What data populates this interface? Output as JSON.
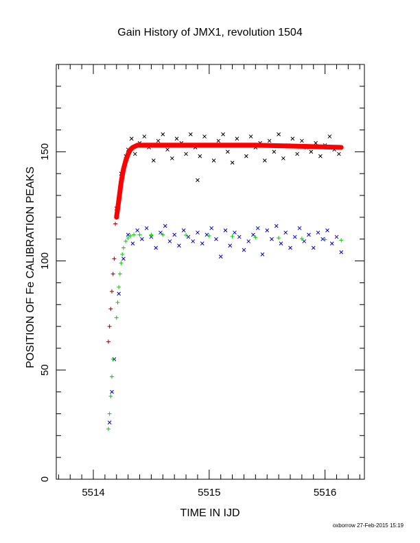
{
  "chart_data": {
    "type": "scatter",
    "title": "Gain History of JMX1, revolution 1504",
    "xlabel": "TIME IN IJD",
    "ylabel": "POSITION OF Fe CALIBRATION PEAKS",
    "footer": "oxborrow 27-Feb-2015 15:19",
    "xlim": [
      5513.68,
      5516.34
    ],
    "ylim": [
      0,
      190
    ],
    "x_ticks": [
      5514,
      5515,
      5516
    ],
    "x_tick_labels": [
      "5514",
      "5515",
      "5516"
    ],
    "y_ticks": [
      0,
      50,
      100,
      150
    ],
    "y_tick_labels": [
      "0",
      "50",
      "100",
      "150"
    ],
    "grid": false,
    "series": [
      {
        "marker": "x",
        "color": "#000000",
        "description_points": "upper peak measurements",
        "x": [
          5514.2,
          5514.24,
          5514.28,
          5514.3,
          5514.33,
          5514.36,
          5514.4,
          5514.44,
          5514.48,
          5514.52,
          5514.56,
          5514.6,
          5514.64,
          5514.68,
          5514.72,
          5514.76,
          5514.8,
          5514.84,
          5514.88,
          5514.9,
          5514.92,
          5514.96,
          5515.0,
          5515.04,
          5515.08,
          5515.12,
          5515.16,
          5515.2,
          5515.24,
          5515.28,
          5515.32,
          5515.36,
          5515.4,
          5515.44,
          5515.48,
          5515.52,
          5515.56,
          5515.6,
          5515.64,
          5515.68,
          5515.72,
          5515.76,
          5515.8,
          5515.84,
          5515.88,
          5515.92,
          5515.96,
          5516.0,
          5516.04,
          5516.08,
          5516.12
        ],
        "y": [
          124,
          140,
          148,
          151,
          156,
          149,
          154,
          157,
          152,
          146,
          155,
          158,
          151,
          147,
          156,
          154,
          149,
          158,
          152,
          137,
          148,
          157,
          153,
          146,
          155,
          158,
          150,
          145,
          156,
          153,
          148,
          157,
          152,
          154,
          146,
          155,
          150,
          158,
          147,
          153,
          156,
          149,
          155,
          152,
          150,
          154,
          148,
          153,
          157,
          151,
          149
        ]
      },
      {
        "marker": "+",
        "color": "#8b0000",
        "description_points": "upper peak early measurements",
        "x": [
          5514.13,
          5514.14,
          5514.15,
          5514.16,
          5514.17,
          5514.18,
          5514.19,
          5514.2,
          5514.21,
          5514.22,
          5514.23,
          5514.24,
          5514.25
        ],
        "y": [
          63,
          70,
          78,
          86,
          94,
          101,
          117,
          121,
          125,
          129,
          133,
          137,
          140
        ]
      },
      {
        "marker": "line",
        "color": "#ff0000",
        "description_points": "upper peak fit",
        "x": [
          5514.2,
          5514.22,
          5514.24,
          5514.26,
          5514.28,
          5514.3,
          5514.32,
          5514.34,
          5514.38,
          5514.45,
          5514.6,
          5514.8,
          5515.0,
          5515.4,
          5515.8,
          5516.14
        ],
        "y": [
          120,
          128,
          136,
          142,
          146,
          149,
          151,
          152,
          153,
          153,
          153,
          153,
          153,
          153,
          152.5,
          152
        ]
      },
      {
        "marker": "x",
        "color": "#0000cc",
        "description_points": "lower peak measurements",
        "x": [
          5514.14,
          5514.16,
          5514.18,
          5514.22,
          5514.26,
          5514.3,
          5514.34,
          5514.38,
          5514.42,
          5514.46,
          5514.5,
          5514.54,
          5514.58,
          5514.62,
          5514.66,
          5514.7,
          5514.74,
          5514.78,
          5514.82,
          5514.86,
          5514.9,
          5514.94,
          5514.98,
          5515.02,
          5515.06,
          5515.1,
          5515.14,
          5515.18,
          5515.22,
          5515.26,
          5515.3,
          5515.34,
          5515.38,
          5515.42,
          5515.46,
          5515.5,
          5515.54,
          5515.58,
          5515.62,
          5515.66,
          5515.7,
          5515.74,
          5515.78,
          5515.82,
          5515.86,
          5515.9,
          5515.94,
          5515.98,
          5516.02,
          5516.06,
          5516.1,
          5516.14
        ],
        "y": [
          26,
          40,
          55,
          85,
          101,
          112,
          108,
          114,
          110,
          115,
          111,
          106,
          113,
          116,
          109,
          112,
          107,
          114,
          111,
          109,
          113,
          108,
          112,
          115,
          110,
          102,
          114,
          107,
          113,
          111,
          105,
          109,
          112,
          115,
          103,
          114,
          110,
          116,
          108,
          113,
          106,
          111,
          115,
          109,
          112,
          106,
          113,
          110,
          114,
          108,
          111,
          104
        ]
      },
      {
        "marker": "+",
        "color": "#00cc00",
        "description_points": "lower peak fit",
        "x": [
          5514.13,
          5514.14,
          5514.15,
          5514.16,
          5514.17,
          5514.2,
          5514.21,
          5514.22,
          5514.23,
          5514.24,
          5514.25,
          5514.26,
          5514.28,
          5514.3,
          5514.32,
          5514.35,
          5514.4,
          5514.5,
          5514.6,
          5514.8,
          5515.0,
          5515.2,
          5515.4,
          5515.6,
          5515.8,
          5516.0,
          5516.14
        ],
        "y": [
          23,
          30,
          38,
          47,
          55,
          74,
          81,
          88,
          94,
          99,
          103,
          106,
          109,
          110.5,
          111.5,
          112,
          112,
          112,
          112,
          111.8,
          111.5,
          111.2,
          110.8,
          110.5,
          110.2,
          109.8,
          109.5
        ]
      }
    ]
  }
}
